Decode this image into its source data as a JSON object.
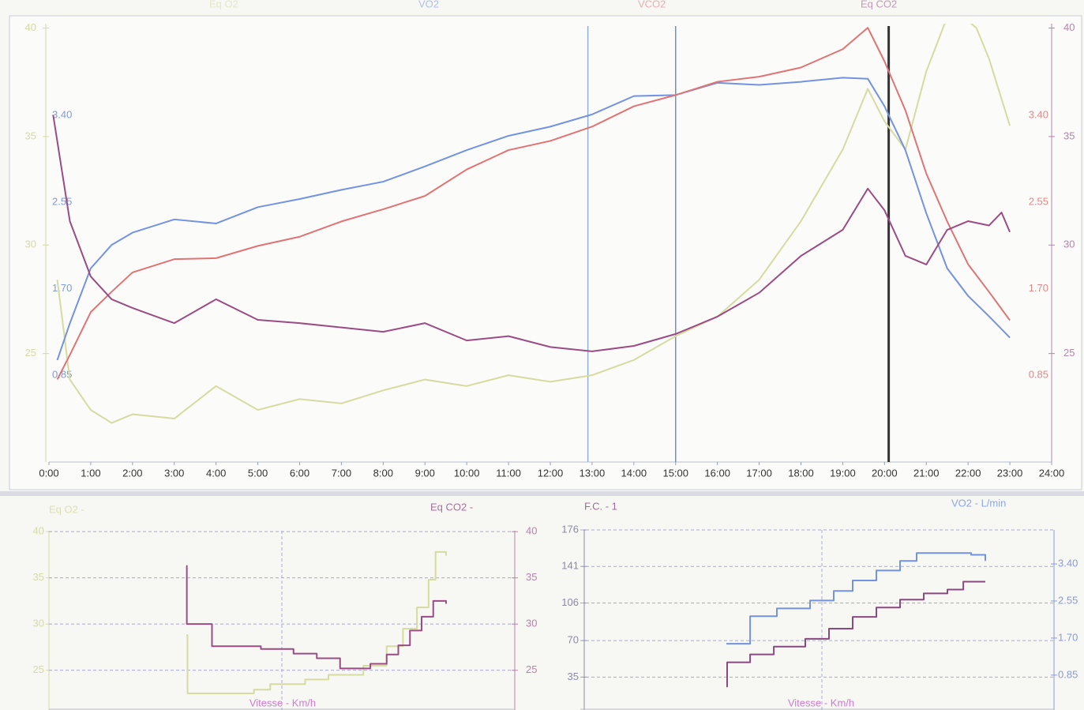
{
  "chart_data": [
    {
      "type": "line",
      "xlim": [
        0,
        24
      ],
      "xticks": [
        {
          "value": 0,
          "label": "0:00"
        },
        {
          "value": 1,
          "label": "1:00"
        },
        {
          "value": 2,
          "label": "2:00"
        },
        {
          "value": 3,
          "label": "3:00"
        },
        {
          "value": 4,
          "label": "4:00"
        },
        {
          "value": 5,
          "label": "5:00"
        },
        {
          "value": 6,
          "label": "6:00"
        },
        {
          "value": 7,
          "label": "7:00"
        },
        {
          "value": 8,
          "label": "8:00"
        },
        {
          "value": 9,
          "label": "9:00"
        },
        {
          "value": 10,
          "label": "10:00"
        },
        {
          "value": 11,
          "label": "11:00"
        },
        {
          "value": 12,
          "label": "12:00"
        },
        {
          "value": 13,
          "label": "13:00"
        },
        {
          "value": 14,
          "label": "14:00"
        },
        {
          "value": 15,
          "label": "15:00"
        },
        {
          "value": 16,
          "label": "16:00"
        },
        {
          "value": 17,
          "label": "17:00"
        },
        {
          "value": 18,
          "label": "18:00"
        },
        {
          "value": 19,
          "label": "19:00"
        },
        {
          "value": 20,
          "label": "20:00"
        },
        {
          "value": 21,
          "label": "21:00"
        },
        {
          "value": 22,
          "label": "22:00"
        },
        {
          "value": 23,
          "label": "23:00"
        },
        {
          "value": 24,
          "label": "24:00"
        }
      ],
      "ylim": [
        20,
        40.2
      ],
      "yticks": [
        25,
        30,
        35,
        40
      ],
      "y2lim": [
        0,
        4.3
      ],
      "y2ticks": [
        0.85,
        {
          "value": 1.7,
          "label": "1.70"
        },
        2.55,
        {
          "value": 3.4,
          "label": "3.40"
        }
      ],
      "vlines": [
        12.9,
        15.0,
        20.1
      ],
      "vline_colors": [
        "#8fb0d8",
        "#6f8fcf",
        "#333333"
      ],
      "series": [
        {
          "name": "Eq O2",
          "color": "#d6dba0",
          "axis": "y",
          "x": [
            0.2,
            0.5,
            1,
            1.5,
            2,
            3,
            4,
            5,
            6,
            7,
            8,
            9,
            10,
            11,
            12,
            13,
            14,
            15,
            16,
            17,
            18,
            19,
            19.6,
            20,
            20.5,
            21,
            21.6,
            22.2,
            22.5,
            23
          ],
          "values": [
            28.4,
            23.8,
            22.4,
            21.8,
            22.2,
            22.0,
            23.5,
            22.4,
            22.9,
            22.7,
            23.3,
            23.8,
            23.5,
            24.0,
            23.7,
            24.0,
            24.7,
            25.8,
            26.7,
            28.4,
            31.1,
            34.4,
            37.2,
            35.7,
            34.4,
            38.0,
            41.0,
            40.0,
            38.6,
            35.5
          ]
        },
        {
          "name": "VO2",
          "color": "#7393e0",
          "axis": "y2",
          "x": [
            0.2,
            0.5,
            1,
            1.5,
            2,
            3,
            4,
            5,
            6,
            7,
            8,
            9,
            10,
            11,
            12,
            13,
            14,
            15,
            16,
            17,
            18,
            19,
            19.6,
            20,
            20.5,
            21,
            21.5,
            22,
            22.5,
            23
          ],
          "values": [
            1.0,
            1.36,
            1.9,
            2.13,
            2.25,
            2.38,
            2.34,
            2.5,
            2.58,
            2.67,
            2.75,
            2.9,
            3.06,
            3.2,
            3.29,
            3.41,
            3.59,
            3.6,
            3.72,
            3.7,
            3.73,
            3.77,
            3.76,
            3.49,
            3.06,
            2.44,
            1.9,
            1.63,
            1.43,
            1.22
          ]
        },
        {
          "name": "VCO2",
          "color": "#e07474",
          "axis": "y2",
          "x": [
            0.2,
            0.5,
            1,
            1.5,
            2,
            3,
            4,
            5,
            6,
            7,
            8,
            9,
            10,
            11,
            12,
            13,
            14,
            15,
            16,
            17,
            18,
            19,
            19.6,
            20,
            20.5,
            21,
            21.5,
            22,
            22.5,
            23
          ],
          "values": [
            0.81,
            1.05,
            1.47,
            1.67,
            1.86,
            1.99,
            2.0,
            2.12,
            2.21,
            2.36,
            2.48,
            2.61,
            2.87,
            3.06,
            3.15,
            3.29,
            3.49,
            3.6,
            3.73,
            3.78,
            3.87,
            4.05,
            4.26,
            3.93,
            3.45,
            2.83,
            2.36,
            1.94,
            1.67,
            1.39
          ]
        },
        {
          "name": "Eq CO2",
          "color": "#9b4c84",
          "axis": "y",
          "x": [
            0.1,
            0.5,
            1,
            1.5,
            2,
            3,
            4,
            5,
            6,
            7,
            8,
            9,
            10,
            11,
            12,
            13,
            14,
            15,
            16,
            17,
            18,
            19,
            19.6,
            20,
            20.5,
            21,
            21.5,
            22,
            22.5,
            22.8,
            23
          ],
          "values": [
            36.0,
            31.1,
            28.55,
            27.5,
            27.1,
            26.4,
            27.5,
            26.55,
            26.4,
            26.2,
            26.0,
            26.4,
            25.6,
            25.8,
            25.3,
            25.1,
            25.35,
            25.9,
            26.7,
            27.8,
            29.5,
            30.7,
            32.6,
            31.6,
            29.5,
            29.1,
            30.7,
            31.1,
            30.9,
            31.5,
            30.6
          ]
        }
      ]
    },
    {
      "type": "step",
      "xlabel": "Vitesse - Km/h",
      "xlim": [
        0,
        20
      ],
      "xticks": [
        10
      ],
      "ylim": [
        20.7,
        40.1
      ],
      "yticks": [
        25,
        30,
        35,
        40
      ],
      "series": [
        {
          "name": "Eq O2 -",
          "color": "#d6dba0",
          "axis": "y",
          "x": [
            5.9,
            5.95,
            8.8,
            9.5,
            11.0,
            12.0,
            13.5,
            14.5,
            15.2,
            15.8,
            16.3,
            16.6,
            17.05
          ],
          "values": [
            28.8,
            22.5,
            22.9,
            23.5,
            24.0,
            24.5,
            25.5,
            27.6,
            29.5,
            31.8,
            34.8,
            37.8,
            37.4
          ]
        },
        {
          "name": "Eq CO2 -",
          "color": "#9b4c84",
          "axis": "y",
          "x": [
            5.9,
            5.92,
            7.0,
            9.1,
            10.5,
            11.5,
            12.5,
            13.8,
            14.5,
            15.0,
            15.5,
            16.0,
            16.5,
            17.05
          ],
          "values": [
            36.3,
            30.0,
            27.6,
            27.3,
            26.8,
            26.3,
            25.2,
            25.7,
            26.7,
            27.7,
            29.3,
            30.8,
            32.5,
            32.2
          ]
        }
      ]
    },
    {
      "type": "step",
      "xlabel": "Vitesse - Km/h",
      "xlim": [
        0,
        20
      ],
      "xticks": [
        10.2
      ],
      "ylim": [
        3.5,
        176
      ],
      "yticks": [
        35,
        70,
        106,
        141,
        176
      ],
      "y2lim": [
        0.05,
        4.18
      ],
      "y2ticks": [
        0.85,
        {
          "value": 1.7,
          "label": "1.70"
        },
        2.55,
        {
          "value": 3.4,
          "label": "3.40"
        }
      ],
      "series": [
        {
          "name": "F.C. - 1",
          "color": "#8a4a80",
          "axis": "y",
          "x": [
            6.17,
            6.2,
            7.17,
            8.17,
            9.5,
            10.5,
            11.5,
            12.5,
            13.5,
            14.5,
            15.5,
            16.17,
            17.1
          ],
          "values": [
            26.0,
            49.2,
            56.7,
            64.2,
            71.7,
            81.4,
            92.7,
            101.7,
            109.2,
            115.2,
            118.9,
            126.4,
            126.4
          ]
        },
        {
          "name": "VO2 - L/min",
          "color": "#7393e0",
          "axis": "y2",
          "x": [
            6.17,
            7.17,
            8.3,
            9.7,
            10.7,
            11.5,
            12.5,
            13.5,
            14.2,
            16.5,
            17.1
          ],
          "values": [
            1.57,
            2.2,
            2.38,
            2.56,
            2.78,
            3.02,
            3.25,
            3.47,
            3.65,
            3.61,
            3.47
          ]
        }
      ]
    }
  ]
}
